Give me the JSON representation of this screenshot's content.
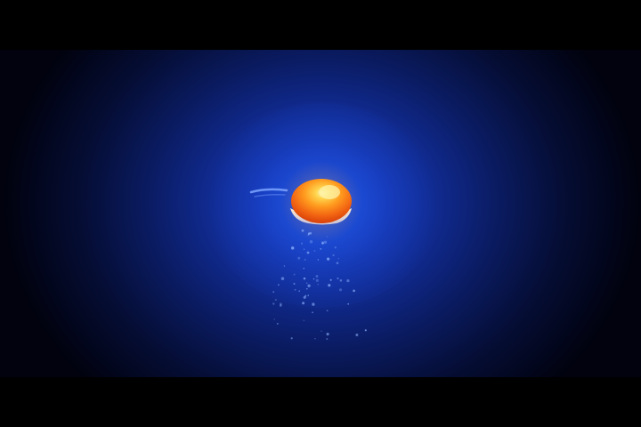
{
  "scene": {
    "description_colors": {
      "background_core": "#1a4bd6",
      "background_edge": "#01020d",
      "orb_core": "#ffd24a",
      "orb_edge": "#e0400a",
      "orb_underside": "#f4e8d8",
      "particles": "#8fb3ff",
      "letterbox": "#000000"
    },
    "icons": [
      "glowing-orb-icon",
      "particle-trail-icon",
      "comet-streak-icon"
    ]
  }
}
